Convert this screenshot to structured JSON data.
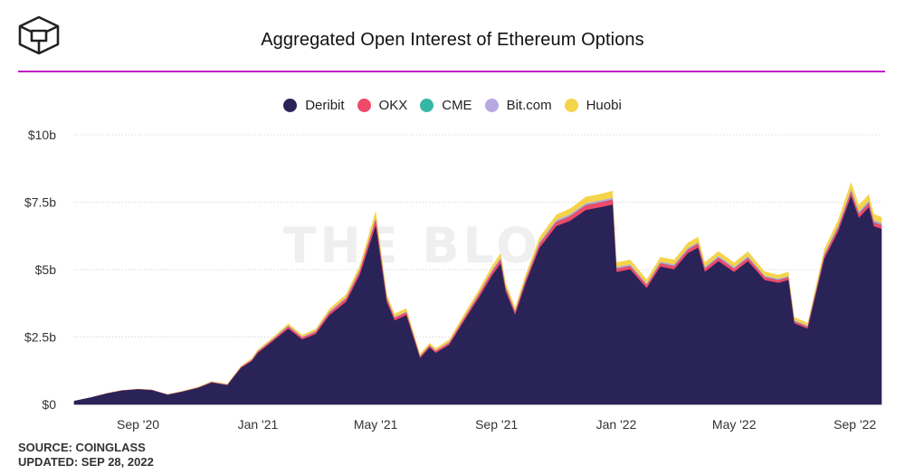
{
  "header": {
    "title": "Aggregated Open Interest of Ethereum Options",
    "logo_icon": "the-block-cube-logo",
    "watermark": "THE BLOCK"
  },
  "footer": {
    "source": "SOURCE: COINGLASS",
    "updated": "UPDATED: SEP 28, 2022"
  },
  "colors": {
    "accent_rule": "#c21ac2"
  },
  "chart_data": {
    "type": "area",
    "stacked": true,
    "title": "Aggregated Open Interest of Ethereum Options",
    "xlabel": "",
    "ylabel": "",
    "ylim": [
      0,
      10
    ],
    "y_unit": "billion USD",
    "y_ticks": [
      {
        "value": 0,
        "label": "$0"
      },
      {
        "value": 2.5,
        "label": "$2.5b"
      },
      {
        "value": 5,
        "label": "$5b"
      },
      {
        "value": 7.5,
        "label": "$7.5b"
      },
      {
        "value": 10,
        "label": "$10b"
      }
    ],
    "x_range": [
      "2020-06-28",
      "2022-09-28"
    ],
    "x_ticks": [
      {
        "date": "2020-09-01",
        "label": "Sep '20"
      },
      {
        "date": "2021-01-01",
        "label": "Jan '21"
      },
      {
        "date": "2021-05-01",
        "label": "May '21"
      },
      {
        "date": "2021-09-01",
        "label": "Sep '21"
      },
      {
        "date": "2022-01-01",
        "label": "Jan '22"
      },
      {
        "date": "2022-05-01",
        "label": "May '22"
      },
      {
        "date": "2022-09-01",
        "label": "Sep '22"
      }
    ],
    "grid": true,
    "legend_position": "top-center",
    "x": [
      "2020-06-28",
      "2020-07-15",
      "2020-08-01",
      "2020-08-15",
      "2020-09-01",
      "2020-09-15",
      "2020-10-01",
      "2020-10-15",
      "2020-11-01",
      "2020-11-15",
      "2020-12-01",
      "2020-12-15",
      "2020-12-26",
      "2021-01-01",
      "2021-01-15",
      "2021-02-01",
      "2021-02-15",
      "2021-03-01",
      "2021-03-15",
      "2021-04-01",
      "2021-04-15",
      "2021-05-01",
      "2021-05-12",
      "2021-05-20",
      "2021-06-01",
      "2021-06-15",
      "2021-06-25",
      "2021-07-01",
      "2021-07-15",
      "2021-08-01",
      "2021-08-15",
      "2021-08-28",
      "2021-09-05",
      "2021-09-10",
      "2021-09-20",
      "2021-10-01",
      "2021-10-15",
      "2021-11-01",
      "2021-11-15",
      "2021-12-01",
      "2021-12-15",
      "2021-12-28",
      "2022-01-01",
      "2022-01-15",
      "2022-02-01",
      "2022-02-15",
      "2022-03-01",
      "2022-03-15",
      "2022-03-25",
      "2022-04-01",
      "2022-04-15",
      "2022-05-01",
      "2022-05-15",
      "2022-06-01",
      "2022-06-15",
      "2022-06-25",
      "2022-07-01",
      "2022-07-15",
      "2022-08-01",
      "2022-08-15",
      "2022-08-28",
      "2022-09-05",
      "2022-09-15",
      "2022-09-20",
      "2022-09-28"
    ],
    "series": [
      {
        "name": "Deribit",
        "color": "#2a2358",
        "values": [
          0.12,
          0.25,
          0.4,
          0.5,
          0.55,
          0.52,
          0.35,
          0.45,
          0.6,
          0.8,
          0.7,
          1.35,
          1.6,
          1.9,
          2.3,
          2.8,
          2.4,
          2.6,
          3.3,
          3.8,
          4.8,
          6.6,
          3.8,
          3.1,
          3.3,
          1.7,
          2.1,
          1.9,
          2.2,
          3.2,
          4.0,
          4.8,
          5.2,
          4.2,
          3.3,
          4.5,
          5.8,
          6.6,
          6.8,
          7.2,
          7.3,
          7.4,
          4.9,
          5.0,
          4.3,
          5.1,
          5.0,
          5.6,
          5.8,
          4.9,
          5.3,
          4.9,
          5.3,
          4.6,
          4.5,
          4.6,
          3.0,
          2.8,
          5.4,
          6.4,
          7.7,
          6.9,
          7.3,
          6.6,
          6.5
        ]
      },
      {
        "name": "OKX",
        "color": "#ef4a6a",
        "values": [
          0.0,
          0.0,
          0.01,
          0.01,
          0.01,
          0.01,
          0.01,
          0.01,
          0.01,
          0.02,
          0.02,
          0.03,
          0.04,
          0.05,
          0.06,
          0.08,
          0.07,
          0.08,
          0.1,
          0.12,
          0.15,
          0.22,
          0.12,
          0.1,
          0.1,
          0.06,
          0.07,
          0.07,
          0.08,
          0.1,
          0.12,
          0.14,
          0.15,
          0.12,
          0.1,
          0.12,
          0.15,
          0.16,
          0.17,
          0.18,
          0.18,
          0.18,
          0.12,
          0.12,
          0.11,
          0.12,
          0.12,
          0.13,
          0.14,
          0.12,
          0.13,
          0.12,
          0.12,
          0.11,
          0.1,
          0.1,
          0.07,
          0.07,
          0.12,
          0.14,
          0.16,
          0.15,
          0.15,
          0.14,
          0.14
        ]
      },
      {
        "name": "CME",
        "color": "#34b7a6",
        "values": [
          0.0,
          0.0,
          0.0,
          0.0,
          0.0,
          0.0,
          0.0,
          0.0,
          0.0,
          0.0,
          0.0,
          0.0,
          0.0,
          0.0,
          0.0,
          0.0,
          0.0,
          0.0,
          0.0,
          0.0,
          0.0,
          0.0,
          0.0,
          0.0,
          0.0,
          0.0,
          0.0,
          0.0,
          0.0,
          0.0,
          0.0,
          0.0,
          0.01,
          0.01,
          0.01,
          0.01,
          0.01,
          0.01,
          0.01,
          0.01,
          0.01,
          0.01,
          0.01,
          0.01,
          0.01,
          0.01,
          0.01,
          0.01,
          0.01,
          0.01,
          0.01,
          0.01,
          0.01,
          0.01,
          0.01,
          0.01,
          0.01,
          0.01,
          0.01,
          0.02,
          0.02,
          0.02,
          0.02,
          0.02,
          0.02
        ]
      },
      {
        "name": "Bit.com",
        "color": "#b6a8e0",
        "values": [
          0.0,
          0.0,
          0.0,
          0.0,
          0.0,
          0.0,
          0.0,
          0.01,
          0.01,
          0.01,
          0.01,
          0.01,
          0.02,
          0.02,
          0.02,
          0.03,
          0.03,
          0.03,
          0.04,
          0.04,
          0.05,
          0.06,
          0.04,
          0.03,
          0.03,
          0.02,
          0.02,
          0.02,
          0.03,
          0.03,
          0.04,
          0.05,
          0.05,
          0.04,
          0.04,
          0.05,
          0.05,
          0.06,
          0.06,
          0.06,
          0.06,
          0.06,
          0.05,
          0.05,
          0.04,
          0.05,
          0.05,
          0.05,
          0.05,
          0.05,
          0.05,
          0.05,
          0.05,
          0.04,
          0.04,
          0.04,
          0.03,
          0.03,
          0.05,
          0.06,
          0.07,
          0.06,
          0.06,
          0.06,
          0.06
        ]
      },
      {
        "name": "Huobi",
        "color": "#f5d44a",
        "values": [
          0.0,
          0.0,
          0.01,
          0.01,
          0.01,
          0.01,
          0.01,
          0.01,
          0.02,
          0.02,
          0.02,
          0.03,
          0.04,
          0.05,
          0.06,
          0.08,
          0.07,
          0.08,
          0.1,
          0.12,
          0.15,
          0.25,
          0.14,
          0.12,
          0.12,
          0.08,
          0.08,
          0.08,
          0.09,
          0.12,
          0.14,
          0.16,
          0.18,
          0.15,
          0.12,
          0.15,
          0.18,
          0.2,
          0.22,
          0.24,
          0.24,
          0.26,
          0.18,
          0.18,
          0.16,
          0.18,
          0.18,
          0.2,
          0.2,
          0.18,
          0.18,
          0.17,
          0.18,
          0.16,
          0.15,
          0.16,
          0.12,
          0.1,
          0.18,
          0.22,
          0.27,
          0.25,
          0.25,
          0.24,
          0.22
        ]
      }
    ]
  }
}
